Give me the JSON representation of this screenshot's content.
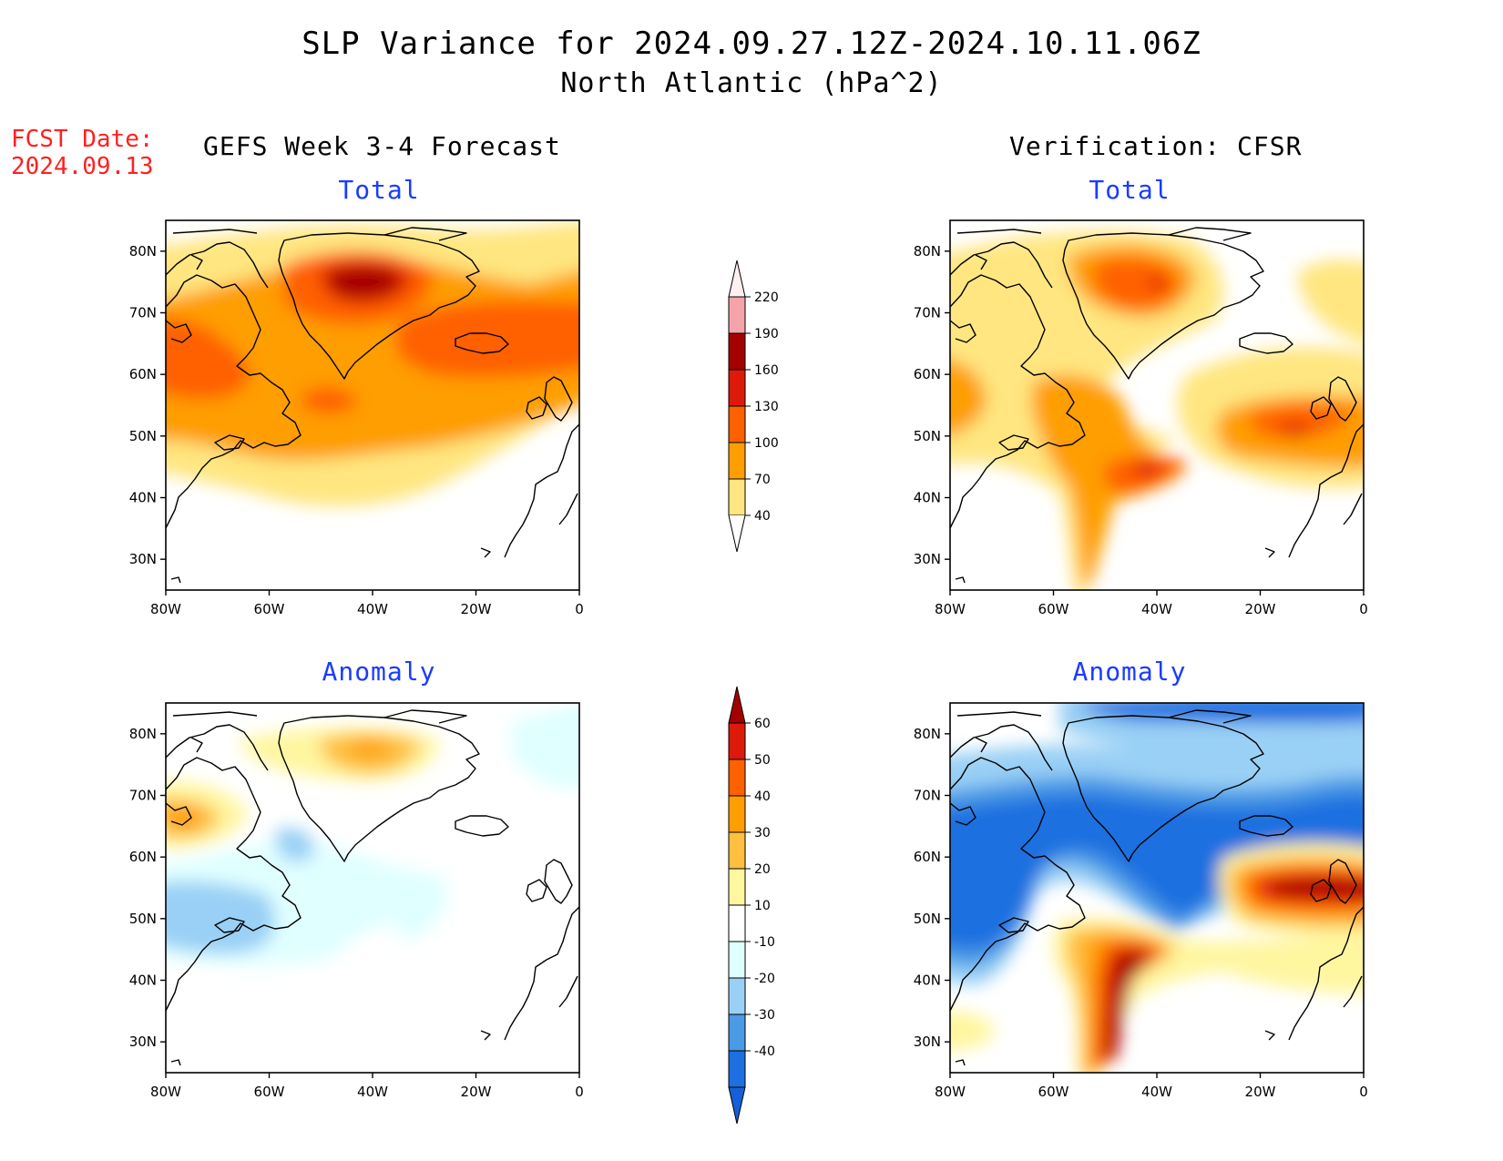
{
  "header": {
    "title_line1": "SLP Variance for 2024.09.27.12Z-2024.10.11.06Z",
    "title_line2": "North Atlantic (hPa^2)"
  },
  "fcst": {
    "label": "FCST Date:",
    "date": "2024.09.13"
  },
  "columns": {
    "left": "GEFS Week 3-4 Forecast",
    "right": "Verification: CFSR"
  },
  "panel_titles": {
    "total": "Total",
    "anomaly": "Anomaly"
  },
  "axes": {
    "lon_ticks": [
      "80W",
      "60W",
      "40W",
      "20W",
      "0"
    ],
    "lat_ticks": [
      "80N",
      "70N",
      "60N",
      "50N",
      "40N",
      "30N"
    ]
  },
  "colorbar_total": {
    "levels": [
      "220",
      "190",
      "160",
      "130",
      "100",
      "70",
      "40"
    ],
    "colors": [
      "#f4a3a8",
      "#a50000",
      "#dd1a0a",
      "#ff6000",
      "#ff9e00",
      "#ffe680"
    ]
  },
  "colorbar_anomaly": {
    "levels": [
      "60",
      "50",
      "40",
      "30",
      "20",
      "10",
      "-10",
      "-20",
      "-30",
      "-40"
    ],
    "colors": [
      "#a50000",
      "#dd1a0a",
      "#ff6000",
      "#ff9e00",
      "#ffbf40",
      "#fff6a0",
      "#ffffff",
      "#e0ffff",
      "#9ad0f5",
      "#4a9ae6",
      "#1e6fe0",
      "#1560d8"
    ]
  }
}
